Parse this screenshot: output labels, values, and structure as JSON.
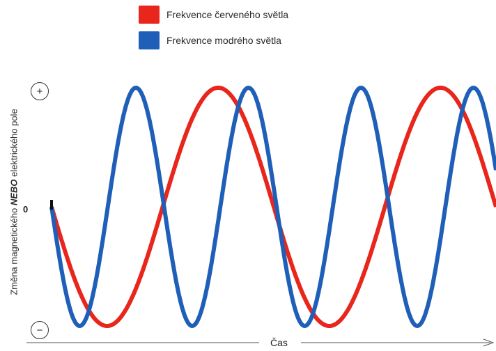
{
  "legend": {
    "red": {
      "label": "Frekvence červeného světla",
      "color": "#e8261c"
    },
    "blue": {
      "label": "Frekvence modrého světla",
      "color": "#1f5fb8"
    }
  },
  "y_axis": {
    "label_prefix": "Změna magnetického ",
    "label_emph": "NEBO",
    "label_suffix": " elektrického pole",
    "plus": "+",
    "minus": "−",
    "zero": "0"
  },
  "x_axis": {
    "label": "Čas"
  },
  "waves": [
    {
      "name": "red",
      "color": "#e8261c",
      "cycles": 2.0
    },
    {
      "name": "blue",
      "color": "#1f5fb8",
      "cycles": 3.95
    }
  ]
}
